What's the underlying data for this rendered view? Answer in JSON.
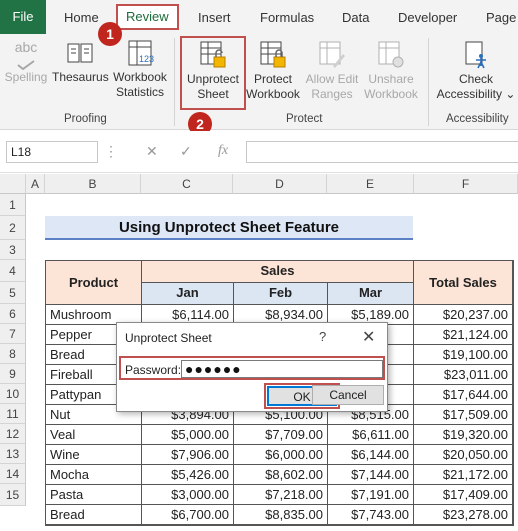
{
  "tabs": [
    "File",
    "Home",
    "Review",
    "Insert",
    "Formulas",
    "Data",
    "Developer",
    "Page"
  ],
  "ribbon": {
    "proofing": {
      "label": "Proofing",
      "spelling": "Spelling",
      "thesaurus": "Thesaurus",
      "workbook_statistics": [
        "Workbook",
        "Statistics"
      ]
    },
    "protect": {
      "label": "Protect",
      "unprotect_sheet": [
        "Unprotect",
        "Sheet"
      ],
      "protect_workbook": [
        "Protect",
        "Workbook"
      ],
      "allow_edit_ranges": [
        "Allow Edit",
        "Ranges"
      ],
      "unshare_workbook": [
        "Unshare",
        "Workbook"
      ]
    },
    "accessibility": {
      "label": "Accessibility",
      "check_accessibility": [
        "Check",
        "Accessibility"
      ]
    },
    "abc_icon_text": "abc",
    "stats_icon_text": "123"
  },
  "formula_bar": {
    "name_box": "L18",
    "fx": "fx"
  },
  "columns": [
    "A",
    "B",
    "C",
    "D",
    "E",
    "F"
  ],
  "rows": [
    "1",
    "2",
    "3",
    "4",
    "5",
    "6",
    "7",
    "8",
    "9",
    "10",
    "11",
    "12",
    "13",
    "14",
    "15"
  ],
  "sheet": {
    "title": "Using Unprotect Sheet Feature",
    "headers": {
      "product": "Product",
      "sales": "Sales",
      "total": "Total Sales",
      "months": [
        "Jan",
        "Feb",
        "Mar"
      ]
    },
    "data": [
      {
        "product": "Mushroom",
        "jan": "$6,114.00",
        "feb": "$8,934.00",
        "mar": "$5,189.00",
        "total": "$20,237.00"
      },
      {
        "product": "Pepper",
        "jan": "",
        "feb": "",
        "mar": "",
        "total": "$21,124.00"
      },
      {
        "product": "Bread",
        "jan": "",
        "feb": "",
        "mar": "",
        "total": "$19,100.00"
      },
      {
        "product": "Fireball",
        "jan": "",
        "feb": "",
        "mar": "",
        "total": "$23,011.00"
      },
      {
        "product": "Pattypan",
        "jan": "",
        "feb": "",
        "mar": "",
        "total": "$17,644.00"
      },
      {
        "product": "Nut",
        "jan": "$3,894.00",
        "feb": "$5,100.00",
        "mar": "$8,515.00",
        "total": "$17,509.00"
      },
      {
        "product": "Veal",
        "jan": "$5,000.00",
        "feb": "$7,709.00",
        "mar": "$6,611.00",
        "total": "$19,320.00"
      },
      {
        "product": "Wine",
        "jan": "$7,906.00",
        "feb": "$6,000.00",
        "mar": "$6,144.00",
        "total": "$20,050.00"
      },
      {
        "product": "Mocha",
        "jan": "$5,426.00",
        "feb": "$8,602.00",
        "mar": "$7,144.00",
        "total": "$21,172.00"
      },
      {
        "product": "Pasta",
        "jan": "$3,000.00",
        "feb": "$7,218.00",
        "mar": "$7,191.00",
        "total": "$17,409.00"
      },
      {
        "product": "Bread",
        "jan": "$6,700.00",
        "feb": "$8,835.00",
        "mar": "$7,743.00",
        "total": "$23,278.00"
      }
    ],
    "row8_partial": "$8,0"
  },
  "dialog": {
    "title": "Unprotect Sheet",
    "help": "?",
    "close": "✕",
    "password_label": "Password:",
    "password_value": "●●●●●●",
    "ok": "OK",
    "cancel": "Cancel"
  },
  "badges": [
    "1",
    "2",
    "3",
    "4"
  ],
  "colors": {
    "excel_green": "#217346",
    "badge_red": "#c0261e",
    "peach": "#fce4d6",
    "blue_header": "#dce6f3"
  }
}
